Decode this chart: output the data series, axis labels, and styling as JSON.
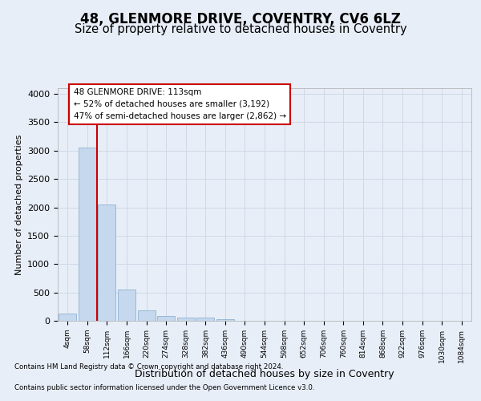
{
  "title1": "48, GLENMORE DRIVE, COVENTRY, CV6 6LZ",
  "title2": "Size of property relative to detached houses in Coventry",
  "xlabel": "Distribution of detached houses by size in Coventry",
  "ylabel": "Number of detached properties",
  "bin_labels": [
    "4sqm",
    "58sqm",
    "112sqm",
    "166sqm",
    "220sqm",
    "274sqm",
    "328sqm",
    "382sqm",
    "436sqm",
    "490sqm",
    "544sqm",
    "598sqm",
    "652sqm",
    "706sqm",
    "760sqm",
    "814sqm",
    "868sqm",
    "922sqm",
    "976sqm",
    "1030sqm",
    "1084sqm"
  ],
  "bar_heights": [
    130,
    3050,
    2050,
    550,
    190,
    80,
    60,
    50,
    30,
    5,
    2,
    1,
    0,
    0,
    0,
    0,
    0,
    0,
    0,
    0,
    0
  ],
  "bar_color": "#c5d8ed",
  "bar_edge_color": "#7fa8cc",
  "annotation_title": "48 GLENMORE DRIVE: 113sqm",
  "annotation_line1": "← 52% of detached houses are smaller (3,192)",
  "annotation_line2": "47% of semi-detached houses are larger (2,862) →",
  "annotation_box_color": "#ffffff",
  "annotation_box_edge": "#cc0000",
  "red_line_color": "#cc0000",
  "ylim": [
    0,
    4100
  ],
  "yticks": [
    0,
    500,
    1000,
    1500,
    2000,
    2500,
    3000,
    3500,
    4000
  ],
  "grid_color": "#d0d8e8",
  "footer1": "Contains HM Land Registry data © Crown copyright and database right 2024.",
  "footer2": "Contains public sector information licensed under the Open Government Licence v3.0.",
  "bg_color": "#e8eef7",
  "plot_bg_color": "#e8eef7",
  "title1_fontsize": 12,
  "title2_fontsize": 10.5
}
